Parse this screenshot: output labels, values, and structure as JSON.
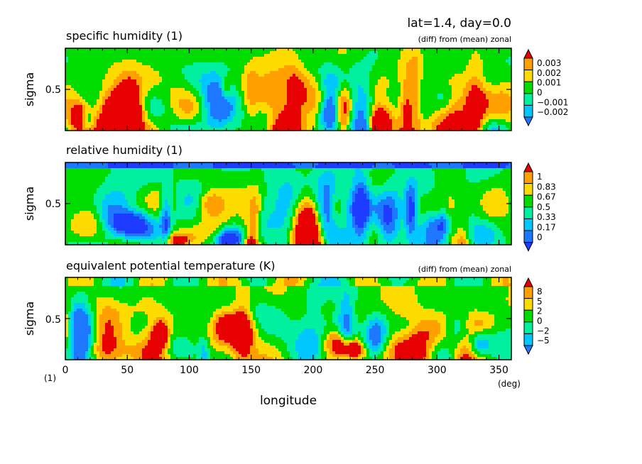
{
  "header": {
    "title": "lat=1.4, day=0.0"
  },
  "panels": [
    {
      "title": "specific humidity (1)",
      "subtitle": "(diff) from (mean) zonal",
      "ylabel": "sigma",
      "ytick": "0.5",
      "colorbar": [
        "0.003",
        "0.002",
        "0.001",
        "0",
        "−0.001",
        "−0.002"
      ],
      "seed": 11
    },
    {
      "title": "relative humidity (1)",
      "subtitle": "",
      "ylabel": "sigma",
      "ytick": "0.5",
      "colorbar": [
        "1",
        "0.83",
        "0.67",
        "0.5",
        "0.33",
        "0.17",
        "0"
      ],
      "seed": 23
    },
    {
      "title": "equivalent potential temperature (K)",
      "subtitle": "(diff) from (mean) zonal",
      "ylabel": "sigma",
      "ytick": "0.5",
      "colorbar": [
        "8",
        "5",
        "2",
        "0",
        "−2",
        "−5"
      ],
      "seed": 37
    }
  ],
  "xaxis": {
    "label": "longitude",
    "unit": "(deg)",
    "corner_unit": "(1)",
    "ticks": [
      "0",
      "50",
      "100",
      "150",
      "200",
      "250",
      "300",
      "350"
    ]
  },
  "chart_data": [
    {
      "type": "heatmap",
      "title": "specific humidity (1)",
      "subtitle": "(diff) from (mean) zonal",
      "xlabel": "longitude",
      "ylabel": "sigma",
      "xlim": [
        0,
        360
      ],
      "ylim": [
        0,
        1
      ],
      "yticks": [
        0.5
      ],
      "color_levels": [
        -0.002,
        -0.001,
        0,
        0.001,
        0.002,
        0.003
      ],
      "colors": [
        "#1e78ff",
        "#00c8ff",
        "#00f0a0",
        "#00dc00",
        "#ffdc00",
        "#ffa000",
        "#e60000"
      ]
    },
    {
      "type": "heatmap",
      "title": "relative humidity (1)",
      "xlabel": "longitude",
      "ylabel": "sigma",
      "xlim": [
        0,
        360
      ],
      "ylim": [
        0,
        1
      ],
      "yticks": [
        0.5
      ],
      "color_levels": [
        0,
        0.17,
        0.33,
        0.5,
        0.67,
        0.83,
        1
      ],
      "colors": [
        "#1e3cff",
        "#1e78ff",
        "#00c8ff",
        "#00f0a0",
        "#00dc00",
        "#ffdc00",
        "#ffa000",
        "#e60000"
      ]
    },
    {
      "type": "heatmap",
      "title": "equivalent potential temperature (K)",
      "subtitle": "(diff) from (mean) zonal",
      "xlabel": "longitude",
      "ylabel": "sigma",
      "xlim": [
        0,
        360
      ],
      "ylim": [
        0,
        1
      ],
      "yticks": [
        0.5
      ],
      "color_levels": [
        -5,
        -2,
        0,
        2,
        5,
        8
      ],
      "colors": [
        "#1e78ff",
        "#00c8ff",
        "#00f0a0",
        "#00dc00",
        "#ffdc00",
        "#ffa000",
        "#e60000"
      ]
    }
  ]
}
